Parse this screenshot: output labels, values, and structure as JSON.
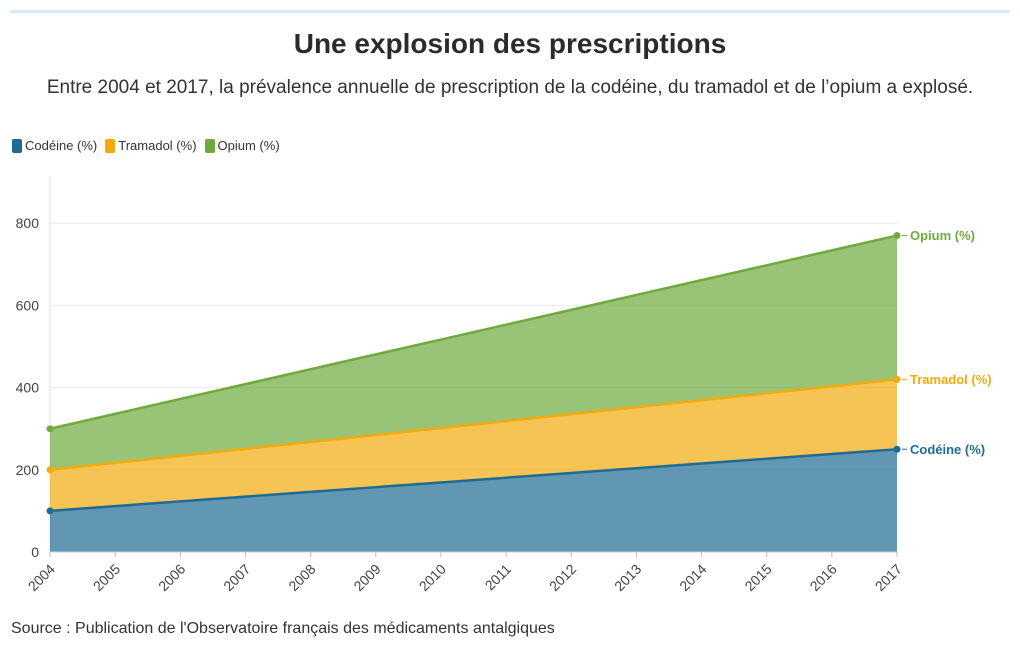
{
  "title": "Une explosion des prescriptions",
  "subtitle": "Entre 2004 et 2017, la prévalence annuelle de prescription de la codéine, du tramadol et de l’opium a explosé.",
  "source": "Source : Publication de l'Observatoire français des médicaments antalgiques",
  "colors": {
    "codeine": "#1f6b94",
    "tramadol": "#f2ab0c",
    "opium": "#6eaa3c",
    "topbar": "#d3eef6"
  },
  "legend": [
    {
      "label": "Codéine (%)",
      "color": "#1f6b94"
    },
    {
      "label": "Tramadol (%)",
      "color": "#f2ab0c"
    },
    {
      "label": "Opium (%)",
      "color": "#6eaa3c"
    }
  ],
  "chart_data": {
    "type": "area",
    "stacked": true,
    "x": [
      2004,
      2005,
      2006,
      2007,
      2008,
      2009,
      2010,
      2011,
      2012,
      2013,
      2014,
      2015,
      2016,
      2017
    ],
    "x_tick_labels": [
      "2004",
      "2005",
      "2006",
      "2007",
      "2008",
      "2009",
      "2010",
      "2011",
      "2012",
      "2013",
      "2014",
      "2015",
      "2016",
      "2017"
    ],
    "y_ticks": [
      0,
      200,
      400,
      600,
      800
    ],
    "ylim": [
      0,
      910
    ],
    "grid": true,
    "legend_position": "top-left",
    "series": [
      {
        "name": "Codéine (%)",
        "color": "#1f6b94",
        "values": [
          100,
          111.5,
          123.1,
          134.6,
          146.2,
          157.7,
          169.2,
          180.8,
          192.3,
          203.8,
          215.4,
          226.9,
          238.5,
          250
        ]
      },
      {
        "name": "Tramadol (%)",
        "color": "#f2ab0c",
        "values": [
          100,
          105.4,
          110.8,
          116.2,
          121.5,
          126.9,
          132.3,
          137.7,
          143.1,
          148.5,
          153.8,
          159.2,
          164.6,
          170
        ]
      },
      {
        "name": "Opium (%)",
        "color": "#6eaa3c",
        "values": [
          100,
          119.2,
          138.5,
          157.7,
          176.9,
          196.2,
          215.4,
          234.6,
          253.8,
          273.1,
          292.3,
          311.5,
          330.8,
          350
        ]
      }
    ],
    "end_labels": [
      "Codéine (%)",
      "Tramadol (%)",
      "Opium (%)"
    ]
  }
}
